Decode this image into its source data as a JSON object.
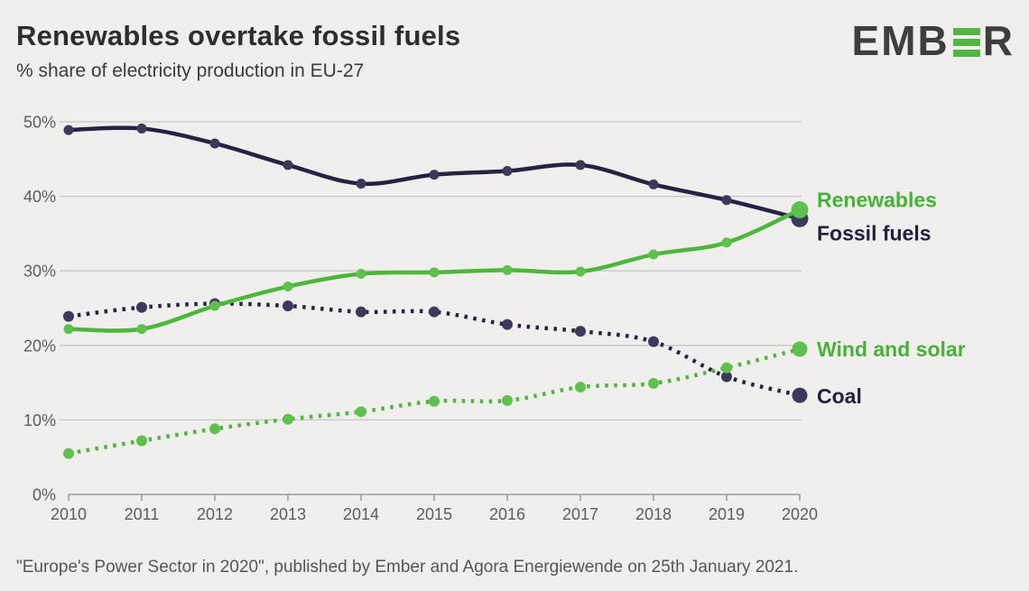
{
  "header": {
    "title": "Renewables overtake fossil fuels",
    "subtitle": "% share of electricity production in EU-27"
  },
  "logo": {
    "prefix": "EMB",
    "suffix": "R",
    "green_e_icon": "three-horizontal-green-bars"
  },
  "footer": {
    "source": "\"Europe's Power Sector in 2020\", published by Ember and Agora Energiewende on 25th January 2021."
  },
  "colors": {
    "brand_green": "#52b544",
    "ink": "#3e3e3e",
    "title_ink": "#2e2e2e",
    "subtitle_ink": "#3b3b3b",
    "muted": "#5d5d5d",
    "footer_ink": "#565656",
    "background": "#f0efee",
    "gridline": "#c8c7c5",
    "axis": "#9d9c9a"
  },
  "chart_data": {
    "type": "line",
    "title": "Renewables overtake fossil fuels",
    "subtitle": "% share of electricity production in EU-27",
    "xlabel": "",
    "ylabel": "% share of electricity production",
    "x": [
      2010,
      2011,
      2012,
      2013,
      2014,
      2015,
      2016,
      2017,
      2018,
      2019,
      2020
    ],
    "ylim": [
      0,
      50
    ],
    "yticks": [
      [
        0,
        "0%"
      ],
      [
        10,
        "10%"
      ],
      [
        20,
        "20%"
      ],
      [
        30,
        "30%"
      ],
      [
        40,
        "40%"
      ],
      [
        50,
        "50%"
      ]
    ],
    "grid": true,
    "legend_position": "end-of-line-labels-right",
    "series": [
      {
        "name": "Coal",
        "style": "dotted",
        "color": "#252343",
        "dot_color": "#3b395c",
        "label_color": "#20203f",
        "values": [
          23.9,
          25.1,
          25.6,
          25.3,
          24.5,
          24.5,
          22.8,
          21.9,
          20.5,
          15.8,
          13.3
        ]
      },
      {
        "name": "Wind and solar",
        "style": "dotted",
        "color": "#4cb73b",
        "dot_color": "#5ec14d",
        "label_color": "#45b235",
        "values": [
          5.5,
          7.2,
          8.8,
          10.1,
          11.1,
          12.5,
          12.6,
          14.4,
          14.9,
          17.0,
          19.5
        ]
      },
      {
        "name": "Fossil fuels",
        "style": "solid",
        "color": "#252343",
        "dot_color": "#3b395c",
        "label_color": "#20203f",
        "values": [
          48.9,
          49.1,
          47.1,
          44.2,
          41.7,
          42.9,
          43.4,
          44.2,
          41.6,
          39.5,
          37.0
        ]
      },
      {
        "name": "Renewables",
        "style": "solid",
        "color": "#4cb73b",
        "dot_color": "#5ec14d",
        "label_color": "#45b235",
        "values": [
          22.2,
          22.2,
          25.3,
          27.9,
          29.6,
          29.8,
          30.1,
          29.9,
          32.2,
          33.8,
          38.2
        ]
      }
    ]
  }
}
